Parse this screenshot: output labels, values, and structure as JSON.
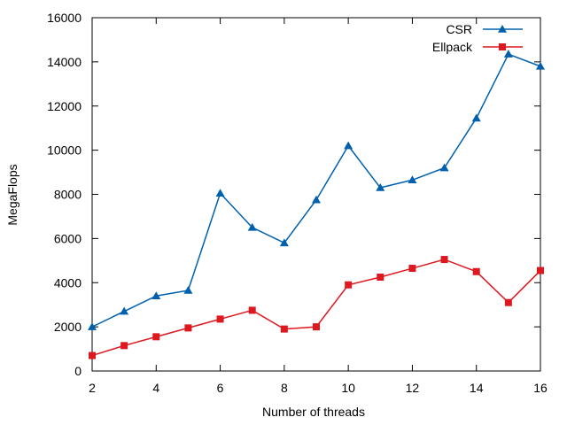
{
  "chart_data": {
    "type": "line",
    "title": "",
    "xlabel": "Number of threads",
    "ylabel": "MegaFlops",
    "x": [
      2,
      3,
      4,
      5,
      6,
      7,
      8,
      9,
      10,
      11,
      12,
      13,
      14,
      15,
      16
    ],
    "xlim": [
      2,
      16
    ],
    "ylim": [
      0,
      16000
    ],
    "xticks": [
      2,
      4,
      6,
      8,
      10,
      12,
      14,
      16
    ],
    "yticks": [
      0,
      2000,
      4000,
      6000,
      8000,
      10000,
      12000,
      14000,
      16000
    ],
    "grid": false,
    "legend_position": "top-right",
    "series": [
      {
        "name": "CSR",
        "color": "#0060ad",
        "marker": "triangle",
        "values": [
          2000,
          2700,
          3400,
          3650,
          8050,
          6500,
          5800,
          7750,
          10200,
          8300,
          8650,
          9200,
          11450,
          14350,
          13800
        ]
      },
      {
        "name": "Ellpack",
        "color": "#dd181f",
        "marker": "square",
        "values": [
          700,
          1150,
          1550,
          1950,
          2350,
          2750,
          1900,
          2000,
          3900,
          4250,
          4650,
          5050,
          4500,
          3100,
          4550
        ]
      }
    ]
  }
}
